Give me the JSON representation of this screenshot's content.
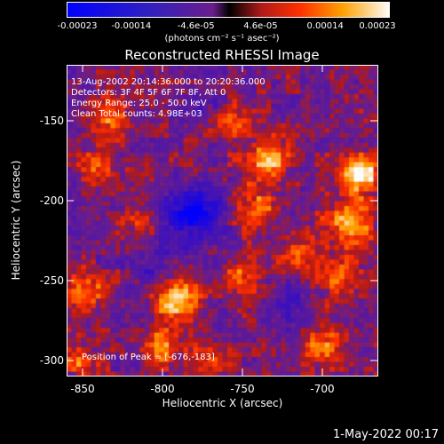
{
  "chart_data": {
    "type": "heatmap",
    "title": "Reconstructed RHESSI Image",
    "xlabel": "Heliocentric X (arcsec)",
    "ylabel": "Heliocentric Y (arcsec)",
    "xlim": [
      -860,
      -665
    ],
    "ylim": [
      -310,
      -115
    ],
    "x_ticks": [
      "-850",
      "-800",
      "-750",
      "-700"
    ],
    "y_ticks": [
      "-150",
      "-200",
      "-250",
      "-300"
    ],
    "colorbar": {
      "ticks": [
        "-0.00023",
        "-0.00014",
        "-4.6e-05",
        "4.6e-05",
        "0.00014",
        "0.00023"
      ],
      "min": -0.00023,
      "max": 0.00023,
      "unit_label": "(photons cm⁻² s⁻¹ asec⁻²)"
    },
    "annotations": [
      "13-Aug-2002 20:14:36.000 to 20:20:36.000",
      "Detectors: 3F 4F 5F 6F 7F 8F, Att 0",
      "Energy Range: 25.0 - 50.0 keV",
      "Clean    Total counts: 4.98E+03"
    ],
    "peak_label": "Position of Peak = [-676,-183]",
    "peak": [
      -676,
      -183
    ],
    "blobs": [
      {
        "x": -676,
        "y": -183,
        "v": 1.0,
        "r": 9
      },
      {
        "x": -684,
        "y": -215,
        "v": 0.8,
        "r": 10
      },
      {
        "x": -690,
        "y": -250,
        "v": 0.55,
        "r": 9
      },
      {
        "x": -700,
        "y": -290,
        "v": 0.6,
        "r": 9
      },
      {
        "x": -715,
        "y": -235,
        "v": 0.5,
        "r": 8
      },
      {
        "x": -735,
        "y": -175,
        "v": 0.7,
        "r": 10
      },
      {
        "x": -742,
        "y": -205,
        "v": 0.6,
        "r": 9
      },
      {
        "x": -748,
        "y": -245,
        "v": 0.55,
        "r": 9
      },
      {
        "x": -758,
        "y": -150,
        "v": 0.5,
        "r": 8
      },
      {
        "x": -790,
        "y": -262,
        "v": 0.85,
        "r": 10
      },
      {
        "x": -800,
        "y": -290,
        "v": 0.55,
        "r": 9
      },
      {
        "x": -770,
        "y": -300,
        "v": 0.5,
        "r": 8
      },
      {
        "x": -832,
        "y": -150,
        "v": 0.6,
        "r": 9
      },
      {
        "x": -840,
        "y": -178,
        "v": 0.45,
        "r": 8
      },
      {
        "x": -848,
        "y": -256,
        "v": 0.55,
        "r": 9
      },
      {
        "x": -852,
        "y": -300,
        "v": 0.5,
        "r": 8
      },
      {
        "x": -812,
        "y": -215,
        "v": 0.35,
        "r": 8
      },
      {
        "x": -780,
        "y": -208,
        "v": -0.9,
        "r": 12
      },
      {
        "x": -805,
        "y": -240,
        "v": -0.4,
        "r": 10
      },
      {
        "x": -720,
        "y": -265,
        "v": -0.35,
        "r": 10
      },
      {
        "x": -775,
        "y": -140,
        "v": -0.3,
        "r": 9
      }
    ]
  },
  "timestamp": "1-May-2022 00:17"
}
